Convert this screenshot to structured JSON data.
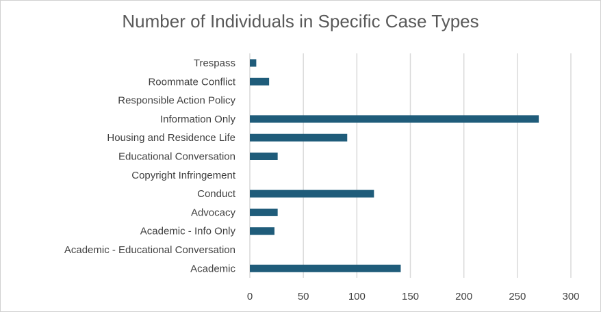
{
  "chart_data": {
    "type": "bar",
    "orientation": "horizontal",
    "title": "Number of Individuals in Specific Case Types",
    "xlabel": "",
    "ylabel": "",
    "categories": [
      "Trespass",
      "Roommate Conflict",
      "Responsible Action Policy",
      "Information Only",
      "Housing and Residence Life",
      "Educational Conversation",
      "Copyright Infringement",
      "Conduct",
      "Advocacy",
      "Academic - Info Only",
      "Academic - Educational Conversation",
      "Academic"
    ],
    "values": [
      6,
      18,
      0,
      270,
      91,
      26,
      0,
      116,
      26,
      23,
      0,
      141
    ],
    "xlim": [
      0,
      300
    ],
    "xticks": [
      0,
      50,
      100,
      150,
      200,
      250,
      300
    ],
    "xtick_labels": [
      "0",
      "50",
      "100",
      "150",
      "200",
      "250",
      "300"
    ],
    "grid": "vertical",
    "legend": "none",
    "bar_color": "#1f5c7a",
    "grid_color": "#d9d9d9"
  }
}
